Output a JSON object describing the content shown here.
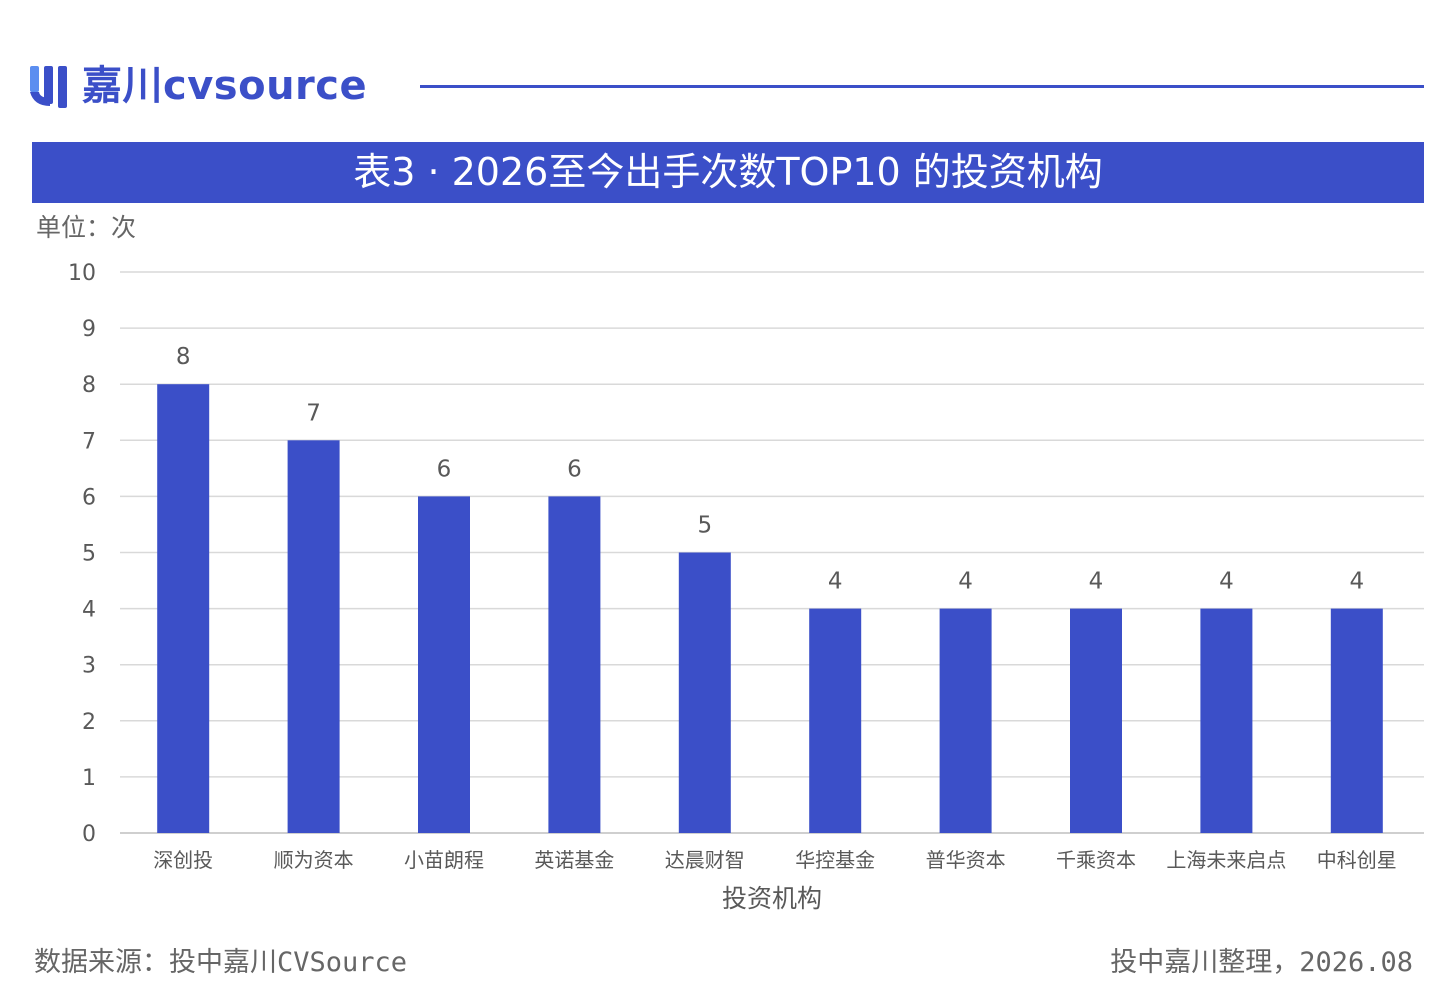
{
  "header": {
    "logo_text": "嘉川cvsource",
    "brand_color": "#3b4fc8"
  },
  "title": "表3 · 2026至今出手次数TOP10 的投资机构",
  "unit_label": "单位：次",
  "footer": {
    "source": "数据来源：投中嘉川CVSource",
    "credit": "投中嘉川整理，2026.08"
  },
  "chart_data": {
    "type": "bar",
    "title": "表3 · 2026至今出手次数TOP10 的投资机构",
    "xlabel": "投资机构",
    "ylabel": "",
    "unit": "单位：次",
    "ylim": [
      0,
      10
    ],
    "yticks": [
      0,
      1,
      2,
      3,
      4,
      5,
      6,
      7,
      8,
      9,
      10
    ],
    "grid": true,
    "bar_color": "#3b4fc8",
    "categories": [
      "深创投",
      "顺为资本",
      "小苗朗程",
      "英诺基金",
      "达晨财智",
      "华控基金",
      "普华资本",
      "千乘资本",
      "上海未来启点",
      "中科创星"
    ],
    "values": [
      8,
      7,
      6,
      6,
      5,
      4,
      4,
      4,
      4,
      4
    ]
  }
}
